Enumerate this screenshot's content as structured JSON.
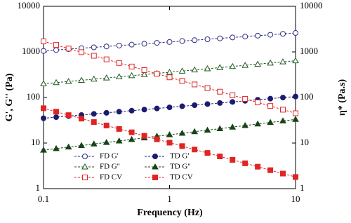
{
  "chart_data": {
    "type": "line",
    "log_x": true,
    "log_y": true,
    "x_label": "Frequency (Hz)",
    "y_label": "G', G'' (Pa)",
    "y2_label": "η* (Pa.s)",
    "xlim": [
      0.1,
      10
    ],
    "xticks": [
      0.1,
      1,
      10
    ],
    "ylim": [
      1,
      10000
    ],
    "yticks": [
      1,
      10,
      100,
      1000,
      10000
    ],
    "y2lim": [
      1,
      10000
    ],
    "y2ticks": [
      1,
      10,
      100,
      1000,
      10000
    ],
    "legend": "lower-left",
    "x": [
      0.1,
      0.126,
      0.158,
      0.2,
      0.251,
      0.316,
      0.398,
      0.501,
      0.631,
      0.794,
      1,
      1.26,
      1.58,
      2,
      2.51,
      3.16,
      3.98,
      5.01,
      6.31,
      7.94,
      10
    ],
    "series": [
      {
        "name": "FD G'",
        "color": "#2b2b80",
        "marker": "circle",
        "filled": false,
        "values": [
          1050,
          1099,
          1150,
          1203,
          1259,
          1317,
          1378,
          1442,
          1509,
          1579,
          1652,
          1729,
          1809,
          1893,
          1981,
          2073,
          2169,
          2270,
          2375,
          2485,
          2600
        ]
      },
      {
        "name": "TD G'",
        "color": "#1c1c6e",
        "marker": "circle",
        "filled": true,
        "values": [
          35,
          37,
          39.1,
          41.3,
          43.6,
          46.1,
          48.7,
          51.4,
          54.3,
          57.4,
          60.7,
          64.1,
          67.7,
          71.6,
          75.6,
          79.9,
          84.4,
          89.2,
          94.2,
          99.6,
          105
        ]
      },
      {
        "name": "FD G''",
        "color": "#1f5a1f",
        "marker": "triangle",
        "filled": false,
        "values": [
          200,
          212,
          225,
          238,
          253,
          268,
          284,
          301,
          319,
          338,
          358,
          380,
          403,
          427,
          452,
          480,
          508,
          539,
          571,
          605,
          640
        ]
      },
      {
        "name": "TD G''",
        "color": "#174417",
        "marker": "triangle",
        "filled": true,
        "values": [
          7,
          7.56,
          8.18,
          8.83,
          9.55,
          10.3,
          11.1,
          12,
          13,
          14.1,
          15.2,
          16.4,
          17.8,
          19.2,
          20.7,
          22.4,
          24.2,
          26.2,
          28.3,
          30.6,
          33
        ]
      },
      {
        "name": "FD CV",
        "color": "#e02424",
        "marker": "square",
        "filled": false,
        "axis": "y2",
        "values": [
          1700,
          1418,
          1183,
          986,
          823,
          686,
          572,
          477,
          398,
          332,
          277,
          231,
          193,
          161,
          134,
          112,
          93,
          78,
          65,
          54,
          45
        ]
      },
      {
        "name": "TD CV",
        "color": "#e02424",
        "marker": "square",
        "filled": true,
        "axis": "y2",
        "values": [
          58,
          48.8,
          41,
          34.4,
          28.9,
          24.3,
          20.4,
          17.2,
          14.4,
          12.1,
          10.2,
          8.58,
          7.21,
          6.06,
          5.1,
          4.28,
          3.6,
          3.03,
          2.54,
          2.14,
          1.8
        ]
      }
    ]
  }
}
